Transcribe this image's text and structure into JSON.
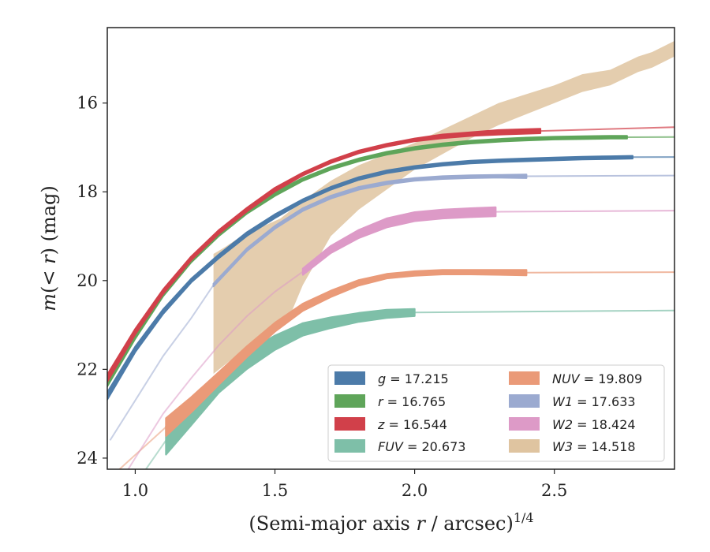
{
  "chart_data": {
    "type": "line",
    "xlabel": "(Semi-major axis r / arcsec)^1/4",
    "xlabel_parts": {
      "open": "(Semi-major axis ",
      "var": "r",
      "rest": " / arcsec)",
      "sup": "1/4"
    },
    "ylabel": "m(< r) (mag)",
    "ylabel_parts": {
      "m": "m",
      "open": "(",
      "lt": "< ",
      "var": "r",
      "close": ")",
      "unit": " (mag)"
    },
    "xlim": [
      0.9,
      2.93
    ],
    "ylim": [
      24.25,
      14.3
    ],
    "y_inverted": true,
    "x_ticks": [
      1.0,
      1.5,
      2.0,
      2.5
    ],
    "x_tick_labels": [
      "1.0",
      "1.5",
      "2.0",
      "2.5"
    ],
    "y_ticks": [
      16,
      18,
      20,
      22,
      24
    ],
    "y_tick_labels": [
      "16",
      "18",
      "20",
      "22",
      "24"
    ],
    "grid": false,
    "legend_placement": "lower-right",
    "series": [
      {
        "name": "g = 17.215",
        "band": "g",
        "value": "17.215",
        "color": "#4c7ba9",
        "x": [
          0.9,
          1.0,
          1.1,
          1.2,
          1.3,
          1.4,
          1.5,
          1.6,
          1.7,
          1.8,
          1.9,
          2.0,
          2.1,
          2.2,
          2.3,
          2.4,
          2.5,
          2.6,
          2.7,
          2.78
        ],
        "y": [
          22.6,
          21.55,
          20.7,
          20.0,
          19.45,
          18.95,
          18.55,
          18.2,
          17.92,
          17.7,
          17.55,
          17.45,
          17.38,
          17.33,
          17.3,
          17.28,
          17.26,
          17.24,
          17.23,
          17.22
        ],
        "half_width": [
          0.08,
          0.06,
          0.05,
          0.04,
          0.04,
          0.04,
          0.04,
          0.03,
          0.03,
          0.03,
          0.03,
          0.03,
          0.03,
          0.03,
          0.03,
          0.03,
          0.03,
          0.03,
          0.03,
          0.03
        ],
        "ext_x": [
          2.78,
          2.93
        ],
        "ext_y": [
          17.22,
          17.215
        ]
      },
      {
        "name": "r = 16.765",
        "band": "r",
        "value": "16.765",
        "color": "#5fa55a",
        "x": [
          0.9,
          1.0,
          1.1,
          1.2,
          1.3,
          1.4,
          1.5,
          1.6,
          1.7,
          1.8,
          1.9,
          2.0,
          2.1,
          2.2,
          2.3,
          2.4,
          2.5,
          2.6,
          2.7,
          2.76
        ],
        "y": [
          22.3,
          21.25,
          20.3,
          19.55,
          18.95,
          18.45,
          18.05,
          17.72,
          17.47,
          17.28,
          17.13,
          17.02,
          16.94,
          16.88,
          16.84,
          16.81,
          16.79,
          16.78,
          16.77,
          16.77
        ],
        "half_width": [
          0.08,
          0.06,
          0.05,
          0.04,
          0.04,
          0.04,
          0.04,
          0.03,
          0.03,
          0.03,
          0.03,
          0.03,
          0.03,
          0.03,
          0.03,
          0.03,
          0.03,
          0.03,
          0.03,
          0.03
        ],
        "ext_x": [
          2.76,
          2.93
        ],
        "ext_y": [
          16.77,
          16.765
        ]
      },
      {
        "name": "z = 16.544",
        "band": "z",
        "value": "16.544",
        "color": "#d1404a",
        "x": [
          0.9,
          1.0,
          1.1,
          1.2,
          1.3,
          1.4,
          1.5,
          1.6,
          1.7,
          1.8,
          1.9,
          2.0,
          2.1,
          2.2,
          2.3,
          2.45
        ],
        "y": [
          22.2,
          21.15,
          20.25,
          19.5,
          18.9,
          18.4,
          17.95,
          17.6,
          17.32,
          17.1,
          16.95,
          16.83,
          16.75,
          16.7,
          16.66,
          16.63
        ],
        "half_width": [
          0.08,
          0.06,
          0.05,
          0.04,
          0.04,
          0.04,
          0.04,
          0.03,
          0.03,
          0.03,
          0.03,
          0.03,
          0.04,
          0.04,
          0.05,
          0.05
        ],
        "ext_x": [
          2.45,
          2.93
        ],
        "ext_y": [
          16.63,
          16.544
        ]
      },
      {
        "name": "FUV = 20.673",
        "band": "FUV",
        "value": "20.673",
        "color": "#7ebfa8",
        "x": [
          1.11,
          1.2,
          1.3,
          1.4,
          1.5,
          1.55,
          1.6,
          1.7,
          1.8,
          1.9,
          2.0
        ],
        "y": [
          23.6,
          23.0,
          22.3,
          21.8,
          21.4,
          21.25,
          21.1,
          20.95,
          20.83,
          20.75,
          20.72
        ],
        "half_width": [
          0.32,
          0.26,
          0.22,
          0.19,
          0.16,
          0.15,
          0.14,
          0.12,
          0.1,
          0.09,
          0.08
        ],
        "ext_x": [
          2.0,
          2.93
        ],
        "ext_y": [
          20.72,
          20.673
        ],
        "pre_x": [
          0.9,
          1.11
        ],
        "pre_y": [
          25.5,
          23.6
        ]
      },
      {
        "name": "NUV = 19.809",
        "band": "NUV",
        "value": "19.809",
        "color": "#ea9a78",
        "x": [
          1.11,
          1.2,
          1.3,
          1.4,
          1.5,
          1.6,
          1.7,
          1.8,
          1.9,
          2.0,
          2.1,
          2.2,
          2.4
        ],
        "y": [
          23.3,
          22.8,
          22.2,
          21.6,
          21.05,
          20.6,
          20.3,
          20.05,
          19.9,
          19.84,
          19.81,
          19.81,
          19.82
        ],
        "half_width": [
          0.2,
          0.17,
          0.14,
          0.12,
          0.1,
          0.08,
          0.07,
          0.06,
          0.05,
          0.05,
          0.05,
          0.05,
          0.06
        ],
        "ext_x": [
          2.4,
          2.93
        ],
        "ext_y": [
          19.82,
          19.809
        ],
        "pre_x": [
          0.9,
          1.11
        ],
        "pre_y": [
          24.5,
          23.3
        ]
      },
      {
        "name": "W1 = 17.633",
        "band": "W1",
        "value": "17.633",
        "color": "#9baad0",
        "x": [
          1.28,
          1.4,
          1.5,
          1.6,
          1.7,
          1.8,
          1.9,
          2.0,
          2.1,
          2.2,
          2.3,
          2.4
        ],
        "y": [
          20.1,
          19.3,
          18.8,
          18.4,
          18.12,
          17.92,
          17.8,
          17.72,
          17.68,
          17.66,
          17.65,
          17.65
        ],
        "half_width": [
          0.03,
          0.03,
          0.03,
          0.03,
          0.03,
          0.03,
          0.03,
          0.03,
          0.03,
          0.03,
          0.03,
          0.04
        ],
        "ext_x": [
          2.4,
          2.93
        ],
        "ext_y": [
          17.65,
          17.633
        ],
        "pre_x": [
          0.91,
          1.0,
          1.1,
          1.2,
          1.28
        ],
        "pre_y": [
          23.6,
          22.7,
          21.7,
          20.85,
          20.1
        ]
      },
      {
        "name": "W2 = 18.424",
        "band": "W2",
        "value": "18.424",
        "color": "#dd9ac7",
        "x": [
          1.6,
          1.7,
          1.8,
          1.9,
          2.0,
          2.1,
          2.2,
          2.29
        ],
        "y": [
          19.8,
          19.3,
          18.95,
          18.7,
          18.56,
          18.5,
          18.47,
          18.45
        ],
        "half_width": [
          0.07,
          0.08,
          0.09,
          0.1,
          0.1,
          0.1,
          0.1,
          0.1
        ],
        "ext_x": [
          2.29,
          2.93
        ],
        "ext_y": [
          18.45,
          18.424
        ],
        "pre_x": [
          0.9,
          1.0,
          1.1,
          1.2,
          1.3,
          1.4,
          1.5,
          1.6
        ],
        "pre_y": [
          25.0,
          24.0,
          23.0,
          22.2,
          21.45,
          20.8,
          20.25,
          19.8
        ]
      }
    ],
    "band_series": {
      "name": "W3 = 14.518",
      "band": "W3",
      "value": "14.518",
      "color": "#dfc4a0",
      "upper_x": [
        1.28,
        1.32,
        1.38,
        1.45,
        1.52,
        1.6,
        1.7,
        1.8,
        1.9,
        2.0,
        2.1,
        2.2,
        2.3,
        2.4,
        2.5,
        2.6,
        2.7,
        2.8,
        2.85,
        2.93
      ],
      "upper_y": [
        19.4,
        19.25,
        19.0,
        18.8,
        18.6,
        18.2,
        17.75,
        17.4,
        17.15,
        16.9,
        16.6,
        16.3,
        16.0,
        15.8,
        15.6,
        15.35,
        15.25,
        14.95,
        14.85,
        14.6
      ],
      "lower_x": [
        2.93,
        2.85,
        2.8,
        2.7,
        2.6,
        2.5,
        2.4,
        2.3,
        2.2,
        2.1,
        2.0,
        1.9,
        1.8,
        1.7,
        1.6,
        1.55,
        1.5,
        1.45,
        1.38,
        1.32,
        1.28
      ],
      "lower_y": [
        14.95,
        15.2,
        15.3,
        15.6,
        15.75,
        16.0,
        16.25,
        16.5,
        16.8,
        17.15,
        17.5,
        17.95,
        18.4,
        19.0,
        20.1,
        20.85,
        21.1,
        21.3,
        21.6,
        21.9,
        22.1
      ]
    },
    "legend_columns": [
      [
        "g",
        "r",
        "z",
        "FUV"
      ],
      [
        "NUV",
        "W1",
        "W2",
        "W3"
      ]
    ]
  }
}
